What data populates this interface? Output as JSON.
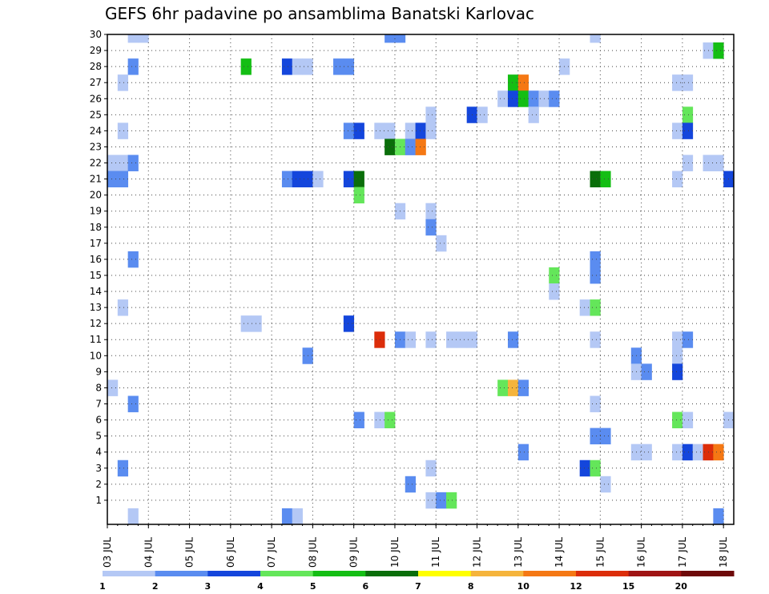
{
  "chart_data": {
    "type": "heatmap",
    "title": "GEFS 6hr padavine po ansamblima Banatski Karlovac",
    "xlabel": "",
    "ylabel": "",
    "x_tick_labels": [
      "03 JUL",
      "04 JUL",
      "05 JUL",
      "06 JUL",
      "07 JUL",
      "08 JUL",
      "09 JUL",
      "10 JUL",
      "11 JUL",
      "12 JUL",
      "13 JUL",
      "14 JUL",
      "15 JUL",
      "16 JUL",
      "17 JUL",
      "18 JUL"
    ],
    "x_range_days": [
      0,
      15
    ],
    "x_step_days": 0.25,
    "y_tick_labels": [
      "1",
      "2",
      "3",
      "4",
      "5",
      "6",
      "7",
      "8",
      "9",
      "10",
      "11",
      "12",
      "13",
      "14",
      "15",
      "16",
      "17",
      "18",
      "19",
      "20",
      "21",
      "22",
      "23",
      "24",
      "25",
      "26",
      "27",
      "28",
      "29",
      "30"
    ],
    "y_range": [
      0,
      30
    ],
    "grid": true,
    "colorbar": {
      "labels": [
        "1",
        "2",
        "3",
        "4",
        "5",
        "6",
        "7",
        "8",
        "10",
        "12",
        "15",
        "20"
      ],
      "colors": [
        "#b4c8f5",
        "#5a8cf0",
        "#1446dc",
        "#64e65a",
        "#14be14",
        "#0a6e0a",
        "#ffff00",
        "#f5b43c",
        "#f57814",
        "#dc2d0a",
        "#a01414",
        "#6e0a0a"
      ]
    },
    "cells": [
      [
        0.5,
        30,
        1
      ],
      [
        0.75,
        30,
        1
      ],
      [
        6.75,
        30,
        2
      ],
      [
        7.0,
        30,
        2
      ],
      [
        11.75,
        30,
        1
      ],
      [
        14.5,
        29,
        1
      ],
      [
        14.75,
        29,
        5
      ],
      [
        0.5,
        28,
        2
      ],
      [
        3.25,
        28,
        5
      ],
      [
        4.25,
        28,
        3
      ],
      [
        4.5,
        28,
        1
      ],
      [
        4.75,
        28,
        1
      ],
      [
        5.5,
        28,
        2
      ],
      [
        5.75,
        28,
        2
      ],
      [
        11.0,
        28,
        1
      ],
      [
        0.25,
        27,
        1
      ],
      [
        9.75,
        27,
        5
      ],
      [
        10.0,
        27,
        9
      ],
      [
        13.75,
        27,
        1
      ],
      [
        14.0,
        27,
        1
      ],
      [
        9.5,
        26,
        1
      ],
      [
        9.75,
        26,
        3
      ],
      [
        10.0,
        26,
        5
      ],
      [
        10.25,
        26,
        2
      ],
      [
        10.5,
        26,
        1
      ],
      [
        10.75,
        26,
        2
      ],
      [
        7.75,
        25,
        1
      ],
      [
        8.75,
        25,
        3
      ],
      [
        9.0,
        25,
        1
      ],
      [
        10.25,
        25,
        1
      ],
      [
        14.0,
        25,
        4
      ],
      [
        0.25,
        24,
        1
      ],
      [
        5.75,
        24,
        2
      ],
      [
        6.0,
        24,
        3
      ],
      [
        6.5,
        24,
        1
      ],
      [
        6.75,
        24,
        1
      ],
      [
        7.25,
        24,
        1
      ],
      [
        7.5,
        24,
        3
      ],
      [
        7.75,
        24,
        1
      ],
      [
        13.75,
        24,
        1
      ],
      [
        14.0,
        24,
        3
      ],
      [
        6.75,
        23,
        6
      ],
      [
        7.0,
        23,
        4
      ],
      [
        7.25,
        23,
        2
      ],
      [
        7.5,
        23,
        9
      ],
      [
        0.0,
        22,
        1
      ],
      [
        0.25,
        22,
        1
      ],
      [
        0.5,
        22,
        2
      ],
      [
        14.0,
        22,
        1
      ],
      [
        14.5,
        22,
        1
      ],
      [
        14.75,
        22,
        1
      ],
      [
        0.0,
        21,
        2
      ],
      [
        0.25,
        21,
        2
      ],
      [
        4.25,
        21,
        2
      ],
      [
        4.5,
        21,
        3
      ],
      [
        4.75,
        21,
        3
      ],
      [
        5.0,
        21,
        1
      ],
      [
        5.75,
        21,
        3
      ],
      [
        6.0,
        21,
        6
      ],
      [
        11.75,
        21,
        6
      ],
      [
        12.0,
        21,
        5
      ],
      [
        13.75,
        21,
        1
      ],
      [
        15.0,
        21,
        3
      ],
      [
        6.0,
        20,
        4
      ],
      [
        7.0,
        19,
        1
      ],
      [
        7.75,
        19,
        1
      ],
      [
        7.75,
        18,
        2
      ],
      [
        8.0,
        17,
        1
      ],
      [
        0.5,
        16,
        2
      ],
      [
        11.75,
        16,
        2
      ],
      [
        10.75,
        15,
        4
      ],
      [
        11.75,
        15,
        2
      ],
      [
        10.75,
        14,
        1
      ],
      [
        0.25,
        13,
        1
      ],
      [
        11.5,
        13,
        1
      ],
      [
        11.75,
        13,
        4
      ],
      [
        3.25,
        12,
        1
      ],
      [
        3.5,
        12,
        1
      ],
      [
        5.75,
        12,
        3
      ],
      [
        6.5,
        11,
        10
      ],
      [
        7.0,
        11,
        2
      ],
      [
        7.25,
        11,
        1
      ],
      [
        7.75,
        11,
        1
      ],
      [
        8.25,
        11,
        1
      ],
      [
        8.5,
        11,
        1
      ],
      [
        8.75,
        11,
        1
      ],
      [
        9.75,
        11,
        2
      ],
      [
        11.75,
        11,
        1
      ],
      [
        13.75,
        11,
        1
      ],
      [
        14.0,
        11,
        2
      ],
      [
        4.75,
        10,
        2
      ],
      [
        12.75,
        10,
        2
      ],
      [
        13.75,
        10,
        1
      ],
      [
        12.75,
        9,
        1
      ],
      [
        13.0,
        9,
        2
      ],
      [
        13.75,
        9,
        3
      ],
      [
        0.0,
        8,
        1
      ],
      [
        9.5,
        8,
        4
      ],
      [
        9.75,
        8,
        8
      ],
      [
        10.0,
        8,
        2
      ],
      [
        0.5,
        7,
        2
      ],
      [
        11.75,
        7,
        1
      ],
      [
        6.0,
        6,
        2
      ],
      [
        6.5,
        6,
        1
      ],
      [
        6.75,
        6,
        4
      ],
      [
        13.75,
        6,
        4
      ],
      [
        14.0,
        6,
        1
      ],
      [
        15.0,
        6,
        1
      ],
      [
        11.75,
        5,
        2
      ],
      [
        12.0,
        5,
        2
      ],
      [
        10.0,
        4,
        2
      ],
      [
        12.75,
        4,
        1
      ],
      [
        13.0,
        4,
        1
      ],
      [
        13.75,
        4,
        1
      ],
      [
        14.0,
        4,
        3
      ],
      [
        14.25,
        4,
        1
      ],
      [
        14.5,
        4,
        10
      ],
      [
        14.75,
        4,
        9
      ],
      [
        0.25,
        3,
        2
      ],
      [
        7.75,
        3,
        1
      ],
      [
        11.5,
        3,
        3
      ],
      [
        11.75,
        3,
        4
      ],
      [
        7.25,
        2,
        2
      ],
      [
        12.0,
        2,
        1
      ],
      [
        7.75,
        1,
        1
      ],
      [
        8.0,
        1,
        2
      ],
      [
        8.25,
        1,
        4
      ],
      [
        0.5,
        0,
        1
      ],
      [
        4.25,
        0,
        2
      ],
      [
        4.5,
        0,
        1
      ],
      [
        14.75,
        0,
        2
      ]
    ]
  }
}
